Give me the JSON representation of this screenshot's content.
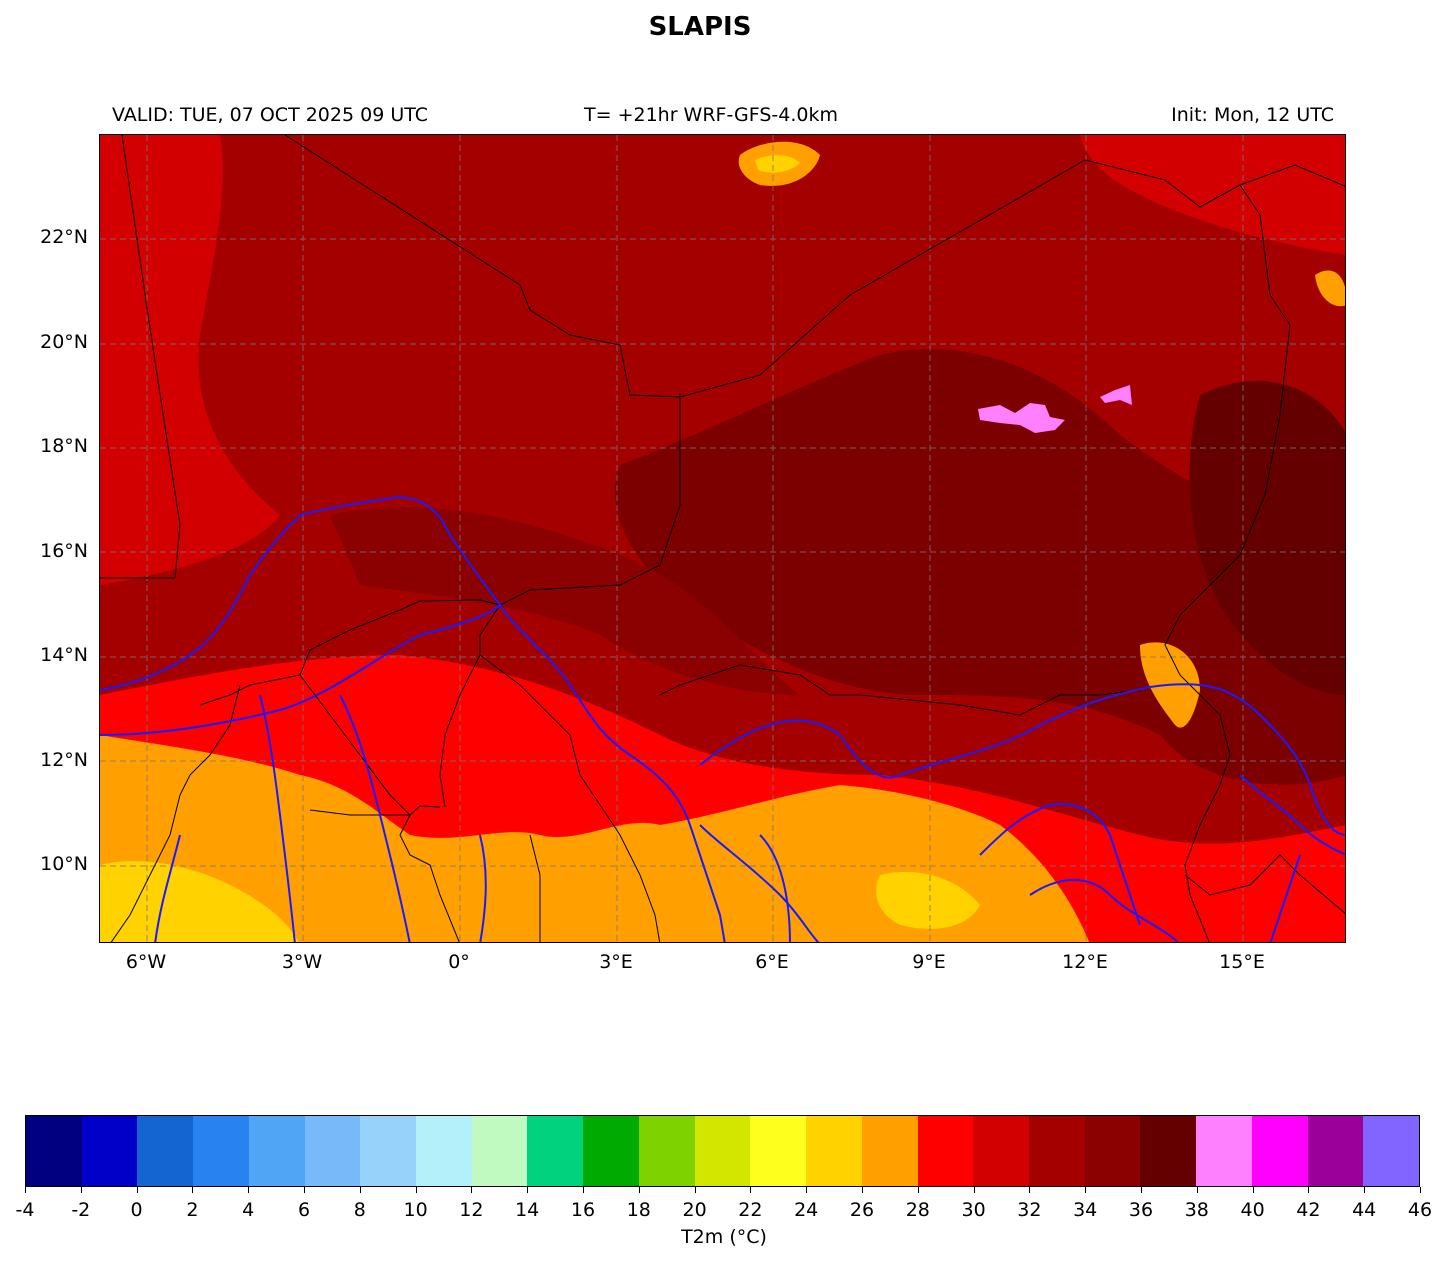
{
  "title": "SLAPIS",
  "subtitle": {
    "valid": "VALID: TUE, 07 OCT 2025 09 UTC",
    "forecast": "T= +21hr WRF-GFS-4.0km",
    "init": "Init: Mon, 12 UTC"
  },
  "map": {
    "lat_labels": [
      "22°N",
      "20°N",
      "18°N",
      "16°N",
      "14°N",
      "12°N",
      "10°N"
    ],
    "lon_labels": [
      "6°W",
      "3°W",
      "0°",
      "3°E",
      "6°E",
      "9°E",
      "12°E",
      "15°E"
    ],
    "lon_range": [
      -6.9,
      16.9
    ],
    "lat_range": [
      8.5,
      24.0
    ]
  },
  "colorbar": {
    "label": "T2m (°C)",
    "ticks": [
      "-4",
      "-2",
      "0",
      "2",
      "4",
      "6",
      "8",
      "10",
      "12",
      "14",
      "16",
      "18",
      "20",
      "22",
      "24",
      "26",
      "28",
      "30",
      "32",
      "34",
      "36",
      "38",
      "40",
      "42",
      "44",
      "46"
    ],
    "colors": [
      "#000080",
      "#0000c8",
      "#1464d2",
      "#2882f0",
      "#50a5f5",
      "#78b9fa",
      "#96d2fa",
      "#b4f0fa",
      "#c0fac0",
      "#00d27d",
      "#00aa00",
      "#7dd200",
      "#d2e600",
      "#ffff1e",
      "#ffd200",
      "#ffa000",
      "#ff0000",
      "#d20000",
      "#a50000",
      "#8b0000",
      "#640000",
      "#ff80ff",
      "#ff00ff",
      "#9b009b",
      "#8264ff"
    ]
  }
}
